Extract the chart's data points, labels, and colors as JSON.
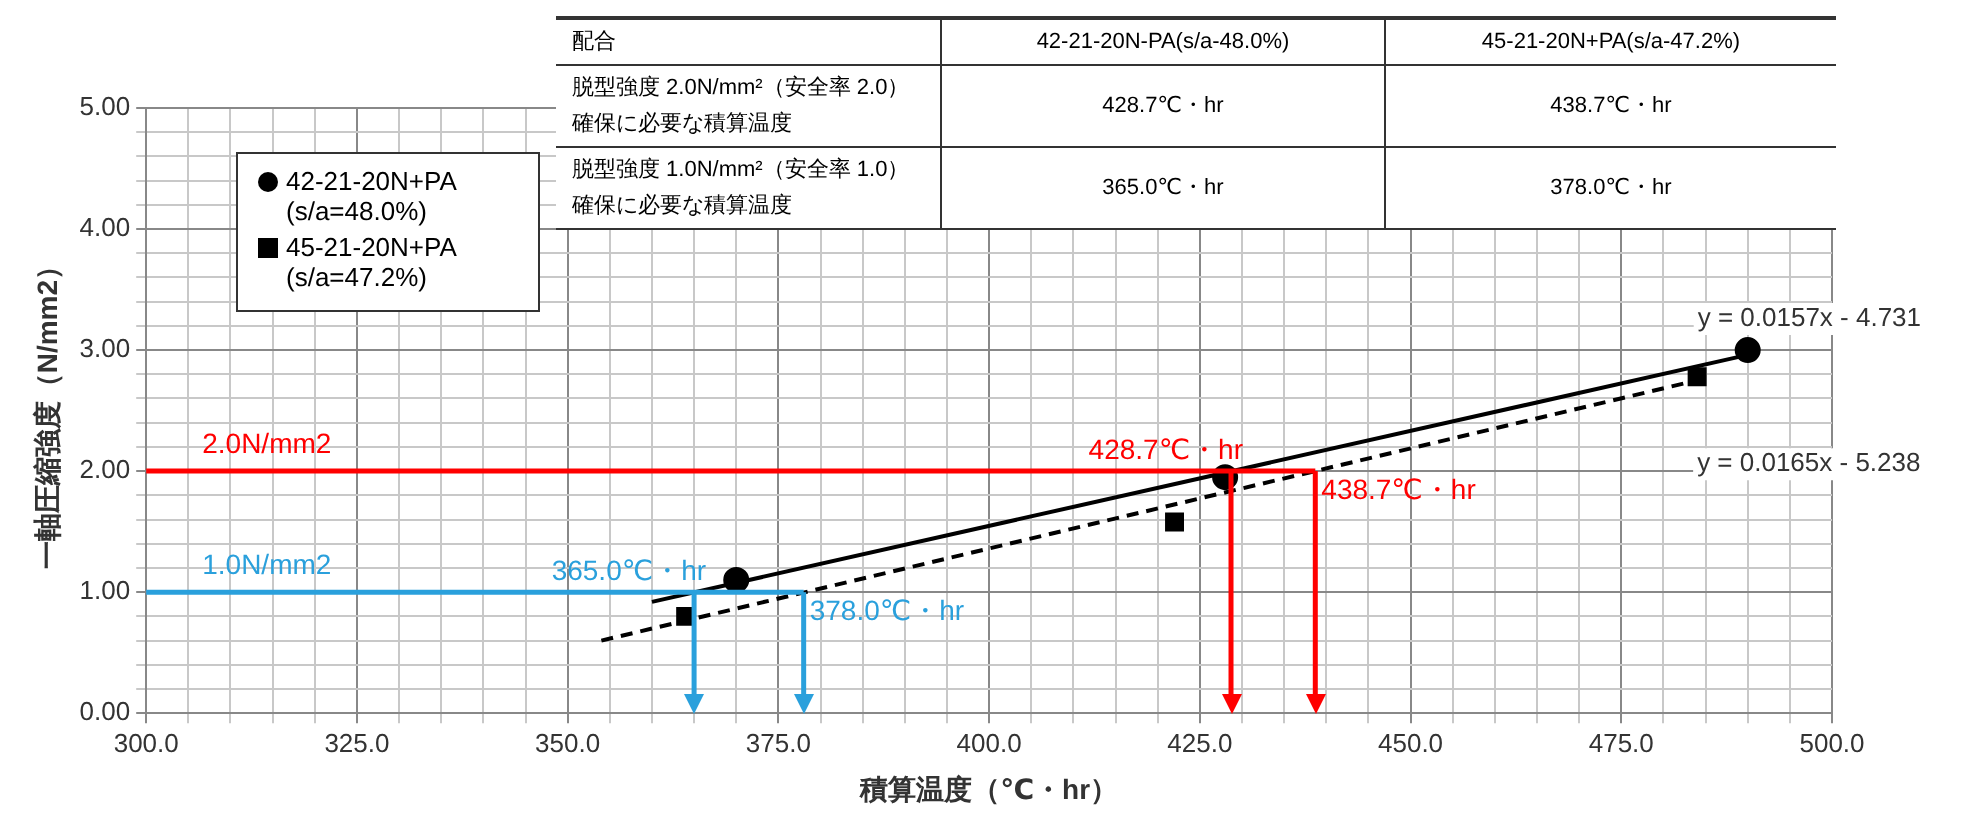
{
  "chart_data": {
    "type": "scatter",
    "xlabel": "積算温度（℃・hr）",
    "ylabel": "一軸圧縮強度（N/mm2）",
    "xlim": [
      300,
      500
    ],
    "xticks": [
      {
        "value": 300,
        "label": "300.0"
      },
      {
        "value": 305,
        "label": null
      },
      {
        "value": 310,
        "label": null
      },
      {
        "value": 315,
        "label": null
      },
      {
        "value": 320,
        "label": null
      },
      {
        "value": 325,
        "label": "325.0"
      },
      {
        "value": 330,
        "label": null
      },
      {
        "value": 335,
        "label": null
      },
      {
        "value": 340,
        "label": null
      },
      {
        "value": 345,
        "label": null
      },
      {
        "value": 350,
        "label": "350.0"
      },
      {
        "value": 355,
        "label": null
      },
      {
        "value": 360,
        "label": null
      },
      {
        "value": 365,
        "label": null
      },
      {
        "value": 370,
        "label": null
      },
      {
        "value": 375,
        "label": "375.0"
      },
      {
        "value": 380,
        "label": null
      },
      {
        "value": 385,
        "label": null
      },
      {
        "value": 390,
        "label": null
      },
      {
        "value": 395,
        "label": null
      },
      {
        "value": 400,
        "label": "400.0"
      },
      {
        "value": 405,
        "label": null
      },
      {
        "value": 410,
        "label": null
      },
      {
        "value": 415,
        "label": null
      },
      {
        "value": 420,
        "label": null
      },
      {
        "value": 425,
        "label": "425.0"
      },
      {
        "value": 430,
        "label": null
      },
      {
        "value": 435,
        "label": null
      },
      {
        "value": 440,
        "label": null
      },
      {
        "value": 445,
        "label": null
      },
      {
        "value": 450,
        "label": "450.0"
      },
      {
        "value": 455,
        "label": null
      },
      {
        "value": 460,
        "label": null
      },
      {
        "value": 465,
        "label": null
      },
      {
        "value": 470,
        "label": null
      },
      {
        "value": 475,
        "label": "475.0"
      },
      {
        "value": 480,
        "label": null
      },
      {
        "value": 485,
        "label": null
      },
      {
        "value": 490,
        "label": null
      },
      {
        "value": 495,
        "label": null
      },
      {
        "value": 500,
        "label": "500.0"
      }
    ],
    "ylim": [
      0,
      5
    ],
    "yticks": [
      {
        "value": 0,
        "label": "0.00"
      },
      {
        "value": 0.2,
        "label": null
      },
      {
        "value": 0.4,
        "label": null
      },
      {
        "value": 0.6,
        "label": null
      },
      {
        "value": 0.8,
        "label": null
      },
      {
        "value": 1,
        "label": "1.00"
      },
      {
        "value": 1.2,
        "label": null
      },
      {
        "value": 1.4,
        "label": null
      },
      {
        "value": 1.6,
        "label": null
      },
      {
        "value": 1.8,
        "label": null
      },
      {
        "value": 2,
        "label": "2.00"
      },
      {
        "value": 2.2,
        "label": null
      },
      {
        "value": 2.4,
        "label": null
      },
      {
        "value": 2.6,
        "label": null
      },
      {
        "value": 2.8,
        "label": null
      },
      {
        "value": 3,
        "label": "3.00"
      },
      {
        "value": 3.2,
        "label": null
      },
      {
        "value": 3.4,
        "label": null
      },
      {
        "value": 3.6,
        "label": null
      },
      {
        "value": 3.8,
        "label": null
      },
      {
        "value": 4,
        "label": "4.00"
      },
      {
        "value": 4.2,
        "label": null
      },
      {
        "value": 4.4,
        "label": null
      },
      {
        "value": 4.6,
        "label": null
      },
      {
        "value": 4.8,
        "label": null
      },
      {
        "value": 5,
        "label": "5.00"
      }
    ],
    "grid": true,
    "legend": "top left",
    "series": [
      {
        "name": "42-21-20N+PA (s/a=48.0%)",
        "type": "scatter",
        "marker": "circle",
        "color": "#000000",
        "x": [
          370,
          428,
          490
        ],
        "values": [
          1.1,
          1.95,
          3.0
        ]
      },
      {
        "name": "45-21-20N+PA (s/a=47.2%)",
        "type": "scatter",
        "marker": "square",
        "color": "#000000",
        "x": [
          364,
          422,
          484
        ],
        "values": [
          0.8,
          1.58,
          2.78
        ]
      },
      {
        "type": "line",
        "marker": "none",
        "line_style": "solid",
        "color": "#000000",
        "x": [
          360,
          490
        ],
        "values": [
          0.92,
          2.96
        ]
      },
      {
        "type": "line",
        "marker": "none",
        "line_style": "dashed",
        "color": "#000000",
        "x": [
          354,
          484
        ],
        "values": [
          0.6,
          2.75
        ]
      }
    ],
    "ref_lines": [
      {
        "axis": "y",
        "value": 2,
        "label": "2.0N/mm2",
        "color": "#ff0000"
      },
      {
        "axis": "y",
        "value": 1,
        "label": "1.0N/mm2",
        "color": "#2aa0dc"
      },
      {
        "axis": "x",
        "value": 428.7,
        "label": "428.7℃・hr",
        "color": "#ff0000"
      },
      {
        "axis": "x",
        "value": 438.7,
        "label": "438.7℃・hr",
        "color": "#ff0000"
      },
      {
        "axis": "x",
        "value": 365,
        "label": "365.0℃・hr",
        "color": "#2aa0dc"
      },
      {
        "axis": "x",
        "value": 378,
        "label": "378.0℃・hr",
        "color": "#2aa0dc"
      }
    ],
    "annotations": [
      "y = 0.0157x - 4.731",
      "y = 0.0165x - 5.238",
      "配合",
      "42-21-20N-PA(s/a-48.0%)",
      "45-21-20N+PA(s/a-47.2%)",
      "脱型強度 2.0N/mm²（安全率 2.0）確保に必要な積算温度",
      "428.7℃・hr",
      "438.7℃・hr",
      "脱型強度 1.0N/mm²（安全率 1.0）確保に必要な積算温度",
      "365.0℃・hr",
      "378.0℃・hr"
    ]
  }
}
